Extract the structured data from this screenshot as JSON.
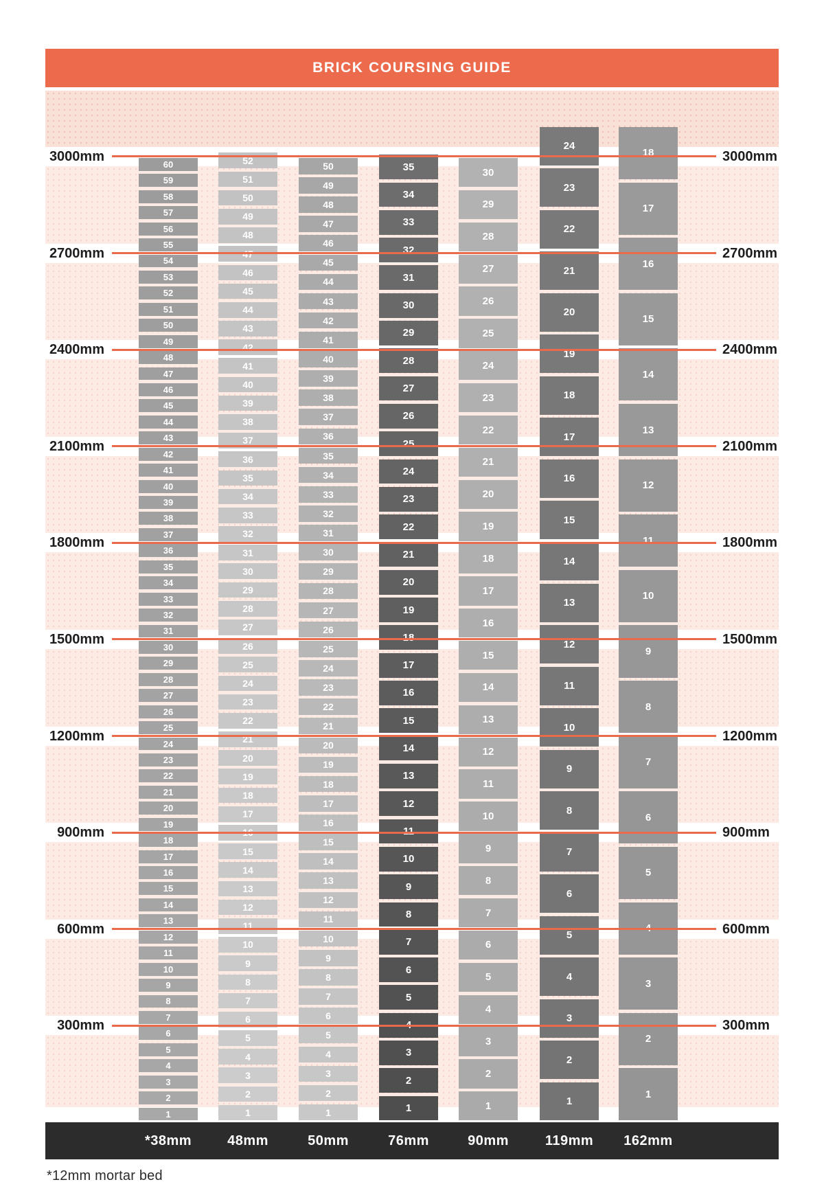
{
  "title": "BRICK COURSING GUIDE",
  "footnote": "*12mm mortar bed",
  "axis": {
    "side": "both",
    "values_mm": [
      3000,
      2700,
      2400,
      2100,
      1800,
      1500,
      1200,
      900,
      600,
      300
    ],
    "labels": [
      "3000mm",
      "2700mm",
      "2400mm",
      "2100mm",
      "1800mm",
      "1500mm",
      "1200mm",
      "900mm",
      "600mm",
      "300mm"
    ]
  },
  "chart_data": {
    "type": "table",
    "title": "BRICK COURSING GUIDE",
    "description": "Brick coursing chart: stacks of numbered courses (1 at bottom) for each brick height, against wall height gridlines every 300mm from 300mm to 3000mm",
    "unit": "mm",
    "ylim": [
      0,
      3100
    ],
    "gridlines_mm": [
      300,
      600,
      900,
      1200,
      1500,
      1800,
      2100,
      2400,
      2700,
      3000
    ],
    "numbered_from": "bottom",
    "columns": [
      {
        "label": "*38mm",
        "brick_height_mm": 38,
        "course_height_mm": 50,
        "courses": 60,
        "top_of_stack_mm": 3000
      },
      {
        "label": "48mm",
        "brick_height_mm": 48,
        "course_height_mm": 58,
        "courses": 52,
        "top_of_stack_mm": 3016
      },
      {
        "label": "50mm",
        "brick_height_mm": 50,
        "course_height_mm": 60,
        "courses": 50,
        "top_of_stack_mm": 3000
      },
      {
        "label": "76mm",
        "brick_height_mm": 76,
        "course_height_mm": 86,
        "courses": 35,
        "top_of_stack_mm": 3010
      },
      {
        "label": "90mm",
        "brick_height_mm": 90,
        "course_height_mm": 100,
        "courses": 30,
        "top_of_stack_mm": 3000
      },
      {
        "label": "119mm",
        "brick_height_mm": 119,
        "course_height_mm": 129,
        "courses": 24,
        "top_of_stack_mm": 3096
      },
      {
        "label": "162mm",
        "brick_height_mm": 162,
        "course_height_mm": 172,
        "courses": 18,
        "top_of_stack_mm": 3096
      }
    ],
    "footnote": "*12mm mortar bed"
  },
  "colors": {
    "header_bar": "#ec6b4c",
    "gridline": "#ea6a4b",
    "axis_label_text": "#1d1d1d",
    "top_band": "#f9e1d8",
    "top_band_dot": "#efc1b1",
    "band": "#fcebe5",
    "band_dot": "#f5d3c7",
    "bottom_bar": "#2c2c2c",
    "block_number_text": "#ffffff",
    "column_grays": [
      {
        "top": "#9c9c9c",
        "bottom": "#a8a8a8"
      },
      {
        "top": "#c2c2c2",
        "bottom": "#cccccc"
      },
      {
        "top": "#a6a6a6",
        "bottom": "#c8c8c8"
      },
      {
        "top": "#6e6e6e",
        "bottom": "#4e4e4e"
      },
      {
        "top": "#b2b2b2",
        "bottom": "#aaaaaa"
      },
      {
        "top": "#7a7a7a",
        "bottom": "#747474"
      },
      {
        "top": "#9a9a9a",
        "bottom": "#959595"
      }
    ]
  }
}
